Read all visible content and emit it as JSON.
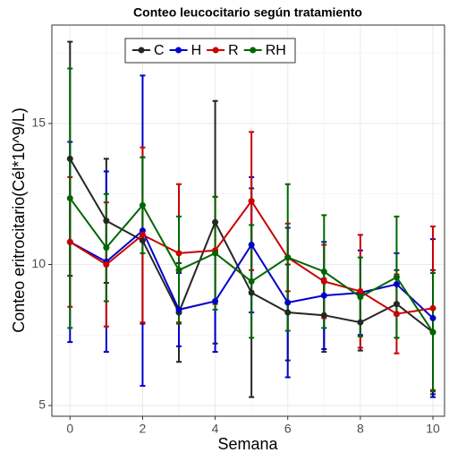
{
  "chart_data": {
    "type": "line_errorbar",
    "title": "Conteo leucocitario según tratamiento",
    "x_label": "Semana",
    "y_label": "Conteo eritrocitario(Cél*10^9/L)",
    "x": [
      0,
      1,
      2,
      3,
      4,
      5,
      6,
      7,
      8,
      9,
      10
    ],
    "xlim": [
      -0.5,
      10.32
    ],
    "xticks": [
      0,
      2,
      4,
      6,
      8,
      10
    ],
    "x_minor_grid": [
      1,
      3,
      5,
      7,
      9
    ],
    "ylim": [
      4.62,
      18.49
    ],
    "yticks": [
      5,
      10,
      15
    ],
    "y_minor_grid": [
      7.5,
      12.5,
      17.5
    ],
    "grid": true,
    "legend": "top",
    "series": [
      {
        "name": "C",
        "color": "#262626",
        "values": [
          13.75,
          11.55,
          10.85,
          8.3,
          11.5,
          9.0,
          8.3,
          8.2,
          7.95,
          8.6,
          7.6
        ],
        "errors": [
          4.15,
          2.2,
          2.95,
          1.75,
          4.3,
          3.7,
          1.7,
          1.3,
          1.0,
          1.2,
          2.2
        ]
      },
      {
        "name": "H",
        "color": "#0000cc",
        "values": [
          10.8,
          10.1,
          11.2,
          8.4,
          8.7,
          10.7,
          8.65,
          8.9,
          9.0,
          9.3,
          8.1
        ],
        "errors": [
          3.55,
          3.2,
          5.5,
          1.3,
          1.8,
          2.4,
          2.65,
          1.9,
          1.5,
          1.1,
          2.8
        ]
      },
      {
        "name": "R",
        "color": "#cc0000",
        "values": [
          10.8,
          10.0,
          11.05,
          10.4,
          10.5,
          12.25,
          10.25,
          9.4,
          9.05,
          8.25,
          8.45
        ],
        "errors": [
          2.3,
          2.2,
          3.1,
          2.45,
          1.9,
          2.45,
          1.2,
          1.3,
          2.0,
          1.4,
          2.9
        ]
      },
      {
        "name": "RH",
        "color": "#006600",
        "values": [
          12.35,
          10.6,
          12.1,
          9.8,
          10.4,
          9.4,
          10.25,
          9.75,
          8.85,
          9.55,
          7.6
        ],
        "errors": [
          4.6,
          1.9,
          1.7,
          1.9,
          2.0,
          2.0,
          2.6,
          2.0,
          1.4,
          2.15,
          2.1
        ]
      }
    ]
  }
}
